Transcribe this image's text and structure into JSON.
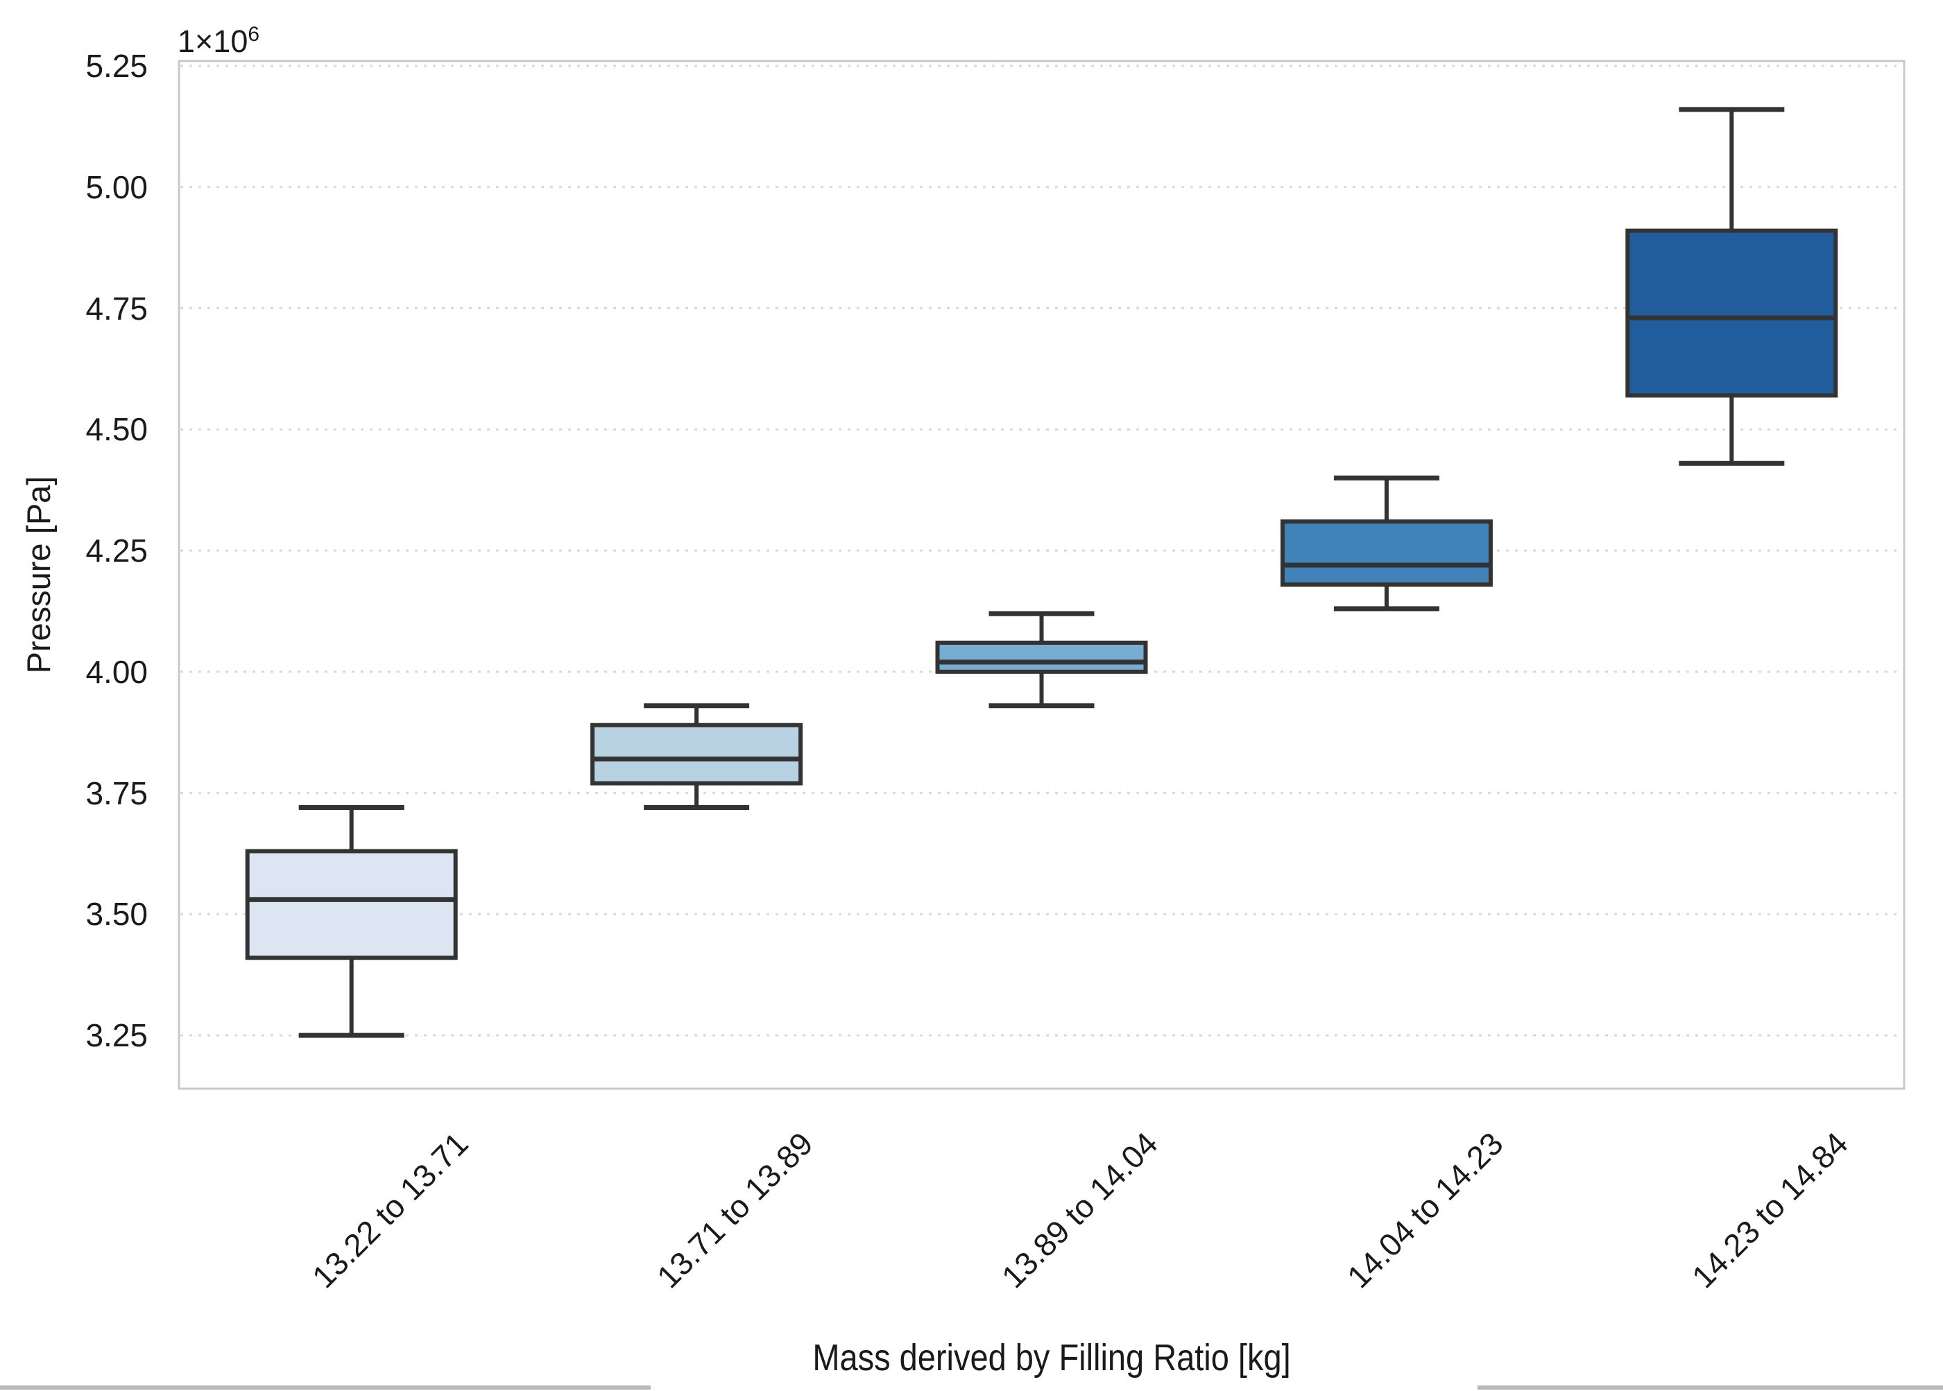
{
  "figure": {
    "background": "#ffffff"
  },
  "chart_data": {
    "type": "boxplot",
    "title": "",
    "xlabel": "Mass derived by Filling Ratio [kg]",
    "ylabel": "Pressure [Pa]",
    "y_scale_offset": {
      "base": "1×10",
      "exponent": "6"
    },
    "unit_multiplier": 1000000,
    "ylim": [
      3.14,
      5.26
    ],
    "yticks": [
      3.25,
      3.5,
      3.75,
      4.0,
      4.25,
      4.5,
      4.75,
      5.0,
      5.25
    ],
    "ytick_labels": [
      "3.25",
      "3.50",
      "3.75",
      "4.00",
      "4.25",
      "4.50",
      "4.75",
      "5.00",
      "5.25"
    ],
    "grid": {
      "axis": "y",
      "style": "dotted",
      "color": "#d9d9d9"
    },
    "legend": "none",
    "categories": [
      "13.22 to 13.71",
      "13.71 to 13.89",
      "13.89 to 14.04",
      "14.04 to 14.23",
      "14.23 to 14.84"
    ],
    "boxes": [
      {
        "category": "13.22 to 13.71",
        "whisker_low": 3.25,
        "q1": 3.41,
        "median": 3.53,
        "q3": 3.63,
        "whisker_high": 3.72,
        "fill": "#dbe6f2"
      },
      {
        "category": "13.71 to 13.89",
        "whisker_low": 3.72,
        "q1": 3.77,
        "median": 3.82,
        "q3": 3.89,
        "whisker_high": 3.93,
        "fill": "#b8d1e3"
      },
      {
        "category": "13.89 to 14.04",
        "whisker_low": 3.93,
        "q1": 4.0,
        "median": 4.02,
        "q3": 4.06,
        "whisker_high": 4.12,
        "fill": "#77abd1"
      },
      {
        "category": "14.04 to 14.23",
        "whisker_low": 4.13,
        "q1": 4.18,
        "median": 4.22,
        "q3": 4.31,
        "whisker_high": 4.4,
        "fill": "#3f83b8"
      },
      {
        "category": "14.23 to 14.84",
        "whisker_low": 4.43,
        "q1": 4.57,
        "median": 4.73,
        "q3": 4.91,
        "whisker_high": 5.16,
        "fill": "#215c9c"
      }
    ],
    "box_edge_color": "#333333",
    "axes_border_color": "#c9c9c9"
  },
  "artifacts": {
    "window_edge_color": "#b9b9b9"
  }
}
